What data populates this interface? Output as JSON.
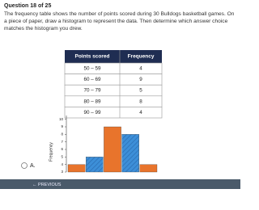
{
  "question": "Question 18 of 25",
  "prompt": "The frequency table shows the number of points scored during 30 Bulldogs basketball games. On a piece of paper, draw a histogram to represent the data. Then determine which answer choice matches the histogram you drew.",
  "table": {
    "header": [
      "Points scored",
      "Frequency"
    ],
    "rows": [
      [
        "50 – 59",
        4
      ],
      [
        "60 – 69",
        9
      ],
      [
        "70 – 79",
        5
      ],
      [
        "80 – 89",
        8
      ],
      [
        "90 – 99",
        4
      ]
    ]
  },
  "choice": "A.",
  "chart_data": {
    "type": "bar",
    "y_label": "Frequency",
    "categories": [
      null,
      null,
      null,
      null,
      null
    ],
    "values": [
      4,
      5,
      9,
      8,
      4
    ],
    "colors": [
      "#e8742c",
      "#3d8fd8",
      "#e8742c",
      "#3d8fd8",
      "#e8742c"
    ],
    "ylim": [
      3,
      10.5
    ],
    "yticks": [
      3,
      4,
      5,
      6,
      7,
      8,
      9,
      10
    ]
  },
  "previous_button": "← PREVIOUS"
}
